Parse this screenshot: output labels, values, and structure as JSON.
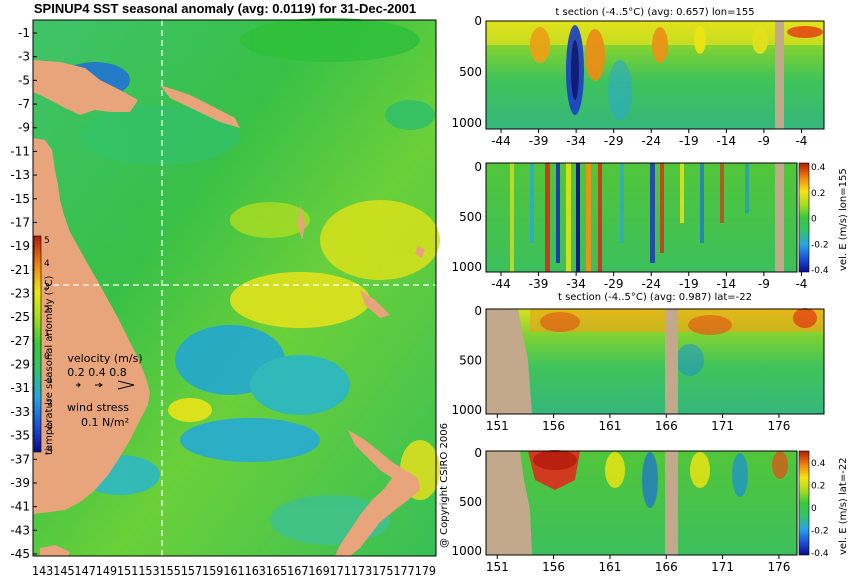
{
  "main_title": "SPINUP4 SST seasonal anomaly (avg: 0.0119) for 31-Dec-2001",
  "copyright": "@ Copyright CSIRO 2006",
  "map": {
    "y_ticks": [
      "-1",
      "-3",
      "-5",
      "-7",
      "-9",
      "-11",
      "-13",
      "-15",
      "-17",
      "-19",
      "-21",
      "-23",
      "-25",
      "-27",
      "-29",
      "-31",
      "-33",
      "-35",
      "-37",
      "-39",
      "-41",
      "-43",
      "-45"
    ],
    "x_tick_strip": "14314514714915115315515715916116316516716917117317517717 9",
    "x_tick_string": "143145147149151153155157159161163165167169171173175177179",
    "colorbar_label": "temperature seasonal anomaly (°C)",
    "colorbar_ticks": [
      "5",
      "4",
      "3",
      "2",
      "1",
      "0",
      "-1",
      "-2",
      "-3",
      "-4"
    ],
    "velocity_label": "velocity (m/s)",
    "velocity_scale": "0.2 0.4 0.8",
    "wind_label": "wind stress",
    "wind_scale": "0.1 N/m²"
  },
  "panels": [
    {
      "title": "t section (-4..5°C) (avg: 0.657) lon=155",
      "y_ticks": [
        "0",
        "500",
        "1000"
      ],
      "x_ticks": [
        "-44",
        "-39",
        "-34",
        "-29",
        "-24",
        "-19",
        "-14",
        "-9",
        "-4"
      ]
    },
    {
      "title": "",
      "y_ticks": [
        "0",
        "500",
        "1000"
      ],
      "x_ticks": [
        "-44",
        "-39",
        "-34",
        "-29",
        "-24",
        "-19",
        "-14",
        "-9",
        "-4"
      ],
      "colorbar_label": "vel. E (m/s) lon=155",
      "colorbar_ticks": [
        "0.4",
        "0.2",
        "0",
        "-0.2",
        "-0.4"
      ]
    },
    {
      "title": "t section (-4..5°C) (avg: 0.987) lat=-22",
      "y_ticks": [
        "0",
        "500",
        "1000"
      ],
      "x_ticks": [
        "151",
        "156",
        "161",
        "166",
        "171",
        "176"
      ]
    },
    {
      "title": "",
      "y_ticks": [
        "0",
        "500",
        "1000"
      ],
      "x_ticks": [
        "151",
        "156",
        "161",
        "166",
        "171",
        "176"
      ],
      "colorbar_label": "vel. E (m/s) lat=-22",
      "colorbar_ticks": [
        "0.4",
        "0.2",
        "0",
        "-0.2",
        "-0.4"
      ]
    }
  ],
  "colors": {
    "land": "#e8a57c",
    "section_land": "#c2a98c",
    "background": "#ffffff",
    "ocean_mid": "#2bbf2b",
    "warm": "#e83a10",
    "cool": "#1a8fd6"
  },
  "chart_data": [
    {
      "type": "heatmap",
      "title": "SPINUP4 SST seasonal anomaly (avg: 0.0119) for 31-Dec-2001",
      "xlabel": "",
      "ylabel": "",
      "xlim": [
        143,
        180
      ],
      "ylim": [
        -45,
        0
      ],
      "x_ticks": [
        143,
        145,
        147,
        149,
        151,
        153,
        155,
        157,
        159,
        161,
        163,
        165,
        167,
        169,
        171,
        173,
        175,
        177,
        179
      ],
      "y_ticks": [
        -1,
        -3,
        -5,
        -7,
        -9,
        -11,
        -13,
        -15,
        -17,
        -19,
        -21,
        -23,
        -25,
        -27,
        -29,
        -31,
        -33,
        -35,
        -37,
        -39,
        -41,
        -43,
        -45
      ],
      "colorbar": {
        "label": "temperature seasonal anomaly (°C)",
        "range": [
          -4,
          5
        ]
      },
      "average": 0.0119,
      "date": "31-Dec-2001"
    },
    {
      "type": "heatmap",
      "title": "t section (-4..5°C) (avg: 0.657) lon=155",
      "xlim": [
        -46,
        -1
      ],
      "ylim": [
        1050,
        0
      ],
      "colorbar": {
        "range": [
          -4,
          5
        ]
      },
      "average": 0.657
    },
    {
      "type": "heatmap",
      "title": "",
      "xlim": [
        -46,
        -1
      ],
      "ylim": [
        1050,
        0
      ],
      "colorbar": {
        "label": "vel. E (m/s) lon=155",
        "range": [
          -0.4,
          0.4
        ]
      }
    },
    {
      "type": "heatmap",
      "title": "t section (-4..5°C) (avg: 0.987) lat=-22",
      "xlim": [
        150,
        180
      ],
      "ylim": [
        1050,
        0
      ],
      "colorbar": {
        "range": [
          -4,
          5
        ]
      },
      "average": 0.987
    },
    {
      "type": "heatmap",
      "title": "",
      "xlim": [
        150,
        180
      ],
      "ylim": [
        1050,
        0
      ],
      "colorbar": {
        "label": "vel. E (m/s) lat=-22",
        "range": [
          -0.4,
          0.4
        ]
      }
    }
  ]
}
